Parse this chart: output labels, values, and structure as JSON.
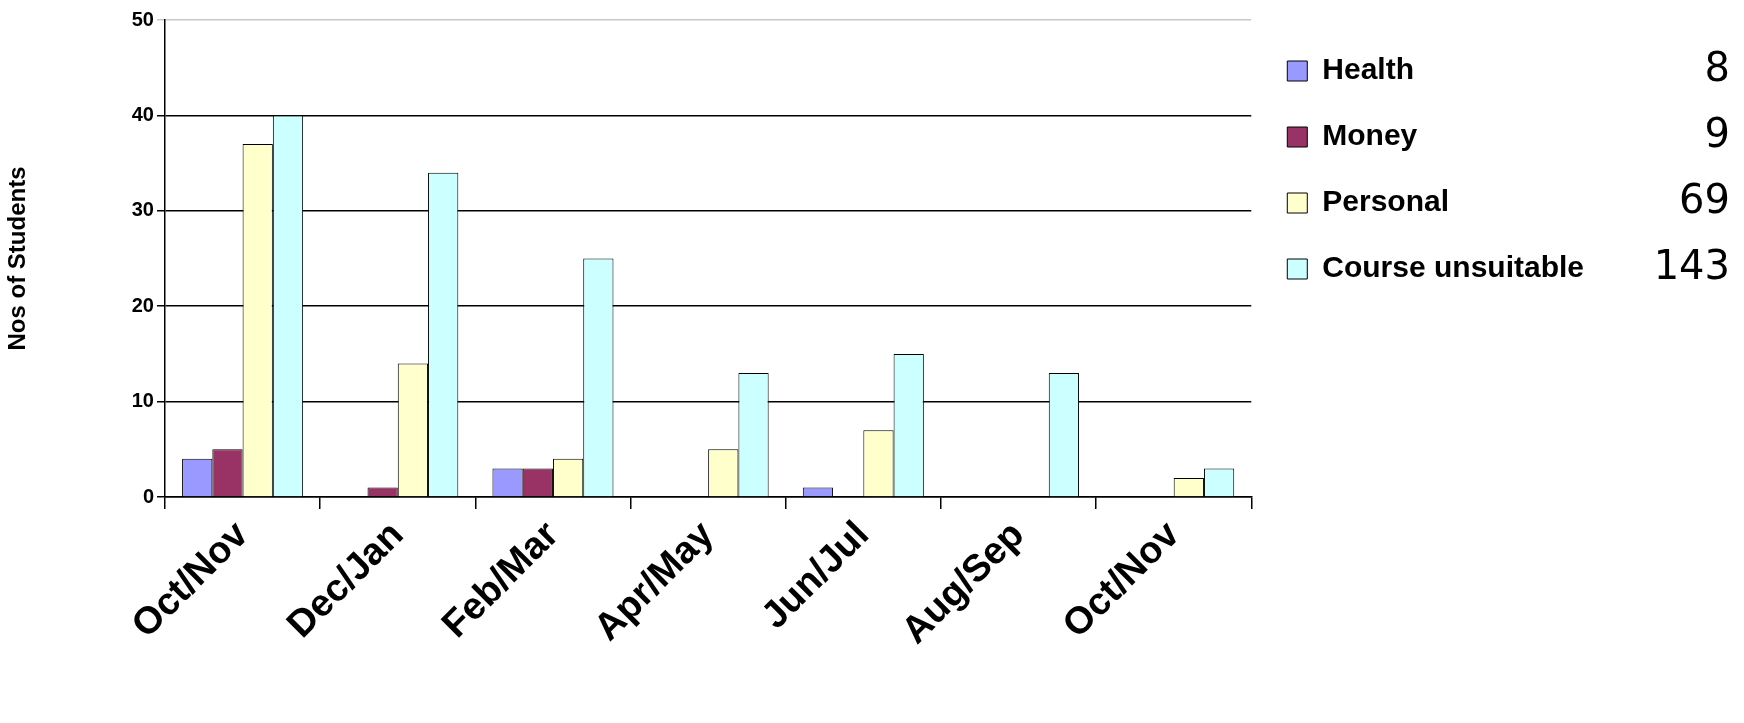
{
  "chart_data": {
    "type": "bar",
    "ylabel": "Nos of Students",
    "categories": [
      "Oct/Nov",
      "Dec/Jan",
      "Feb/Mar",
      "Apr/May",
      "Jun/Jul",
      "Aug/Sep",
      "Oct/Nov"
    ],
    "series": [
      {
        "name": "Health",
        "color": "#9999ff",
        "values": [
          4,
          0,
          3,
          0,
          1,
          0,
          0
        ]
      },
      {
        "name": "Money",
        "color": "#993366",
        "values": [
          5,
          1,
          3,
          0,
          0,
          0,
          0
        ]
      },
      {
        "name": "Personal",
        "color": "#ffffcc",
        "values": [
          37,
          14,
          4,
          5,
          7,
          0,
          2
        ]
      },
      {
        "name": "Course unsuitable",
        "color": "#ccffff",
        "values": [
          40,
          34,
          25,
          13,
          15,
          13,
          3
        ]
      }
    ],
    "annotations": [
      "8",
      "9",
      "69",
      "143"
    ],
    "ylim": [
      0,
      50
    ],
    "yticks": [
      0,
      10,
      20,
      30,
      40,
      50
    ],
    "grid": "y",
    "legend": "top right"
  }
}
